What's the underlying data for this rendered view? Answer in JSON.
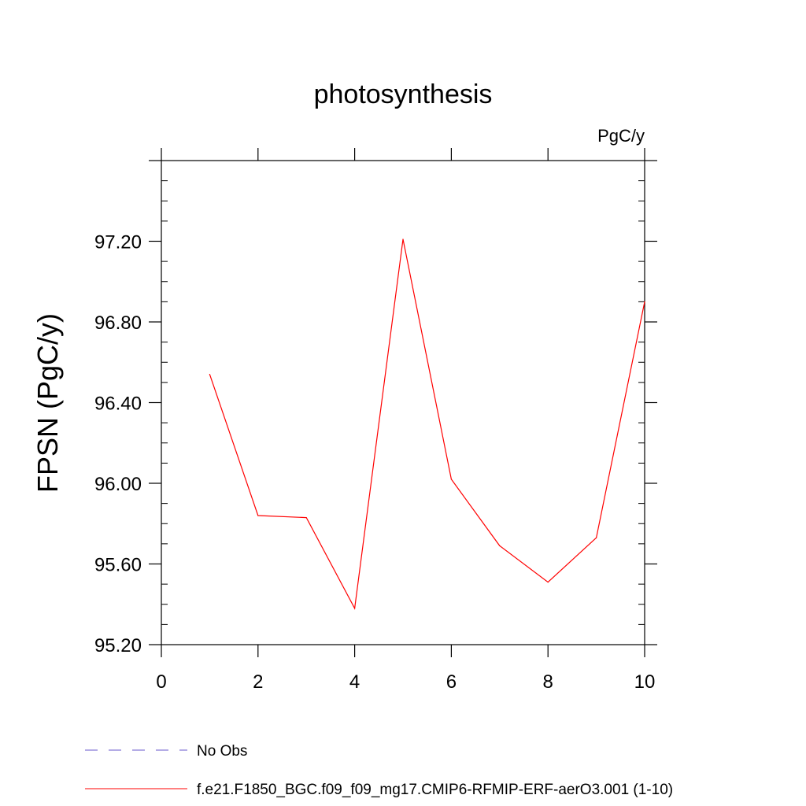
{
  "colors": {
    "series": "#ff0000",
    "obs": "#6a5acd",
    "axis": "#000000",
    "background": "#ffffff"
  },
  "chart_data": {
    "type": "line",
    "title": "photosynthesis",
    "units_label": "PgC/y",
    "xlabel": "",
    "ylabel": "FPSN  (PgC/y)",
    "xlim": [
      0,
      10
    ],
    "ylim": [
      95.2,
      97.6
    ],
    "grid": false,
    "legend_position": "bottom-left",
    "x_ticks": [
      "0",
      "2",
      "4",
      "6",
      "8",
      "10"
    ],
    "y_ticks": [
      "95.20",
      "95.60",
      "96.00",
      "96.40",
      "96.80",
      "97.20"
    ],
    "series": [
      {
        "name": "f.e21.F1850_BGC.f09_f09_mg17.CMIP6-RFMIP-ERF-aerO3.001 (1-10)",
        "color": "#ff0000",
        "style": "solid",
        "x": [
          1,
          2,
          3,
          4,
          5,
          6,
          7,
          8,
          9,
          10
        ],
        "values": [
          96.54,
          95.84,
          95.83,
          95.38,
          97.21,
          96.02,
          95.69,
          95.51,
          95.73,
          96.9
        ]
      }
    ],
    "legend": [
      {
        "label": "No Obs",
        "style": "dashed",
        "color": "#6a5acd"
      },
      {
        "label": "f.e21.F1850_BGC.f09_f09_mg17.CMIP6-RFMIP-ERF-aerO3.001 (1-10)",
        "style": "solid",
        "color": "#ff0000"
      }
    ]
  }
}
